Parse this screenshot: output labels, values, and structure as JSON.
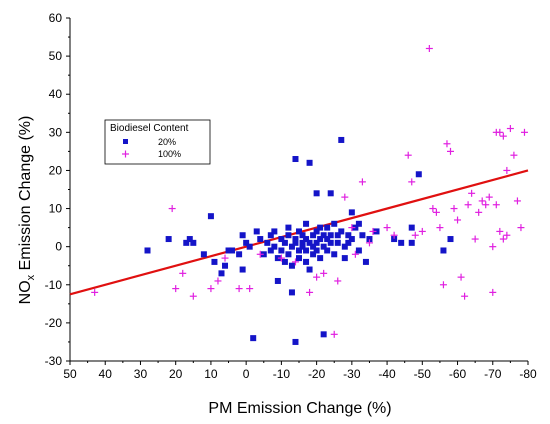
{
  "chart_data": {
    "type": "scatter",
    "xlabel": "PM Emission Change (%)",
    "ylabel_main": "NO",
    "ylabel_sub": "x",
    "ylabel_rest": " Emission Change (%)",
    "xlim": [
      50,
      -80
    ],
    "ylim": [
      -30,
      60
    ],
    "x_ticks": [
      50,
      40,
      30,
      20,
      10,
      0,
      -10,
      -20,
      -30,
      -40,
      -50,
      -60,
      -70,
      -80
    ],
    "y_ticks": [
      -30,
      -20,
      -10,
      0,
      10,
      20,
      30,
      40,
      50,
      60
    ],
    "legend": {
      "title": "Biodiesel Content",
      "placement": "upper-left"
    },
    "series": [
      {
        "name": "20%",
        "marker": "square",
        "color": "#1414c8",
        "points": [
          [
            28,
            -1
          ],
          [
            22,
            2
          ],
          [
            17,
            1
          ],
          [
            16,
            2
          ],
          [
            15,
            1
          ],
          [
            12,
            -2
          ],
          [
            10,
            8
          ],
          [
            9,
            -4
          ],
          [
            7,
            -7
          ],
          [
            6,
            -5
          ],
          [
            5,
            -1
          ],
          [
            4,
            -1
          ],
          [
            2,
            -2
          ],
          [
            1,
            3
          ],
          [
            1,
            -6
          ],
          [
            0,
            1
          ],
          [
            -1,
            0
          ],
          [
            -2,
            -24
          ],
          [
            -3,
            4
          ],
          [
            -4,
            2
          ],
          [
            -5,
            -2
          ],
          [
            -6,
            1
          ],
          [
            -7,
            3
          ],
          [
            -7,
            -1
          ],
          [
            -8,
            4
          ],
          [
            -8,
            0
          ],
          [
            -9,
            -3
          ],
          [
            -9,
            -9
          ],
          [
            -10,
            2
          ],
          [
            -10,
            -1
          ],
          [
            -11,
            1
          ],
          [
            -11,
            -4
          ],
          [
            -12,
            3
          ],
          [
            -12,
            5
          ],
          [
            -12,
            -2
          ],
          [
            -13,
            0
          ],
          [
            -13,
            -5
          ],
          [
            -13,
            -12
          ],
          [
            -14,
            1
          ],
          [
            -14,
            2
          ],
          [
            -14,
            23
          ],
          [
            -14,
            -25
          ],
          [
            -15,
            -1
          ],
          [
            -15,
            4
          ],
          [
            -15,
            -3
          ],
          [
            -16,
            0
          ],
          [
            -16,
            1
          ],
          [
            -16,
            3
          ],
          [
            -17,
            -4
          ],
          [
            -17,
            2
          ],
          [
            -17,
            -1
          ],
          [
            -17,
            6
          ],
          [
            -18,
            22
          ],
          [
            -18,
            -6
          ],
          [
            -18,
            1
          ],
          [
            -19,
            0
          ],
          [
            -19,
            3
          ],
          [
            -19,
            -2
          ],
          [
            -20,
            14
          ],
          [
            -20,
            1
          ],
          [
            -20,
            4
          ],
          [
            -20,
            -1
          ],
          [
            -21,
            2
          ],
          [
            -21,
            -3
          ],
          [
            -21,
            5
          ],
          [
            -22,
            0
          ],
          [
            -22,
            -23
          ],
          [
            -22,
            3
          ],
          [
            -23,
            2
          ],
          [
            -23,
            -1
          ],
          [
            -23,
            5
          ],
          [
            -24,
            14
          ],
          [
            -24,
            3
          ],
          [
            -24,
            1
          ],
          [
            -25,
            6
          ],
          [
            -25,
            -2
          ],
          [
            -26,
            3
          ],
          [
            -26,
            1
          ],
          [
            -27,
            28
          ],
          [
            -27,
            4
          ],
          [
            -28,
            0
          ],
          [
            -28,
            -3
          ],
          [
            -29,
            3
          ],
          [
            -29,
            1
          ],
          [
            -30,
            9
          ],
          [
            -30,
            2
          ],
          [
            -31,
            5
          ],
          [
            -32,
            6
          ],
          [
            -32,
            -1
          ],
          [
            -33,
            3
          ],
          [
            -34,
            -4
          ],
          [
            -35,
            2
          ],
          [
            -37,
            4
          ],
          [
            -42,
            2
          ],
          [
            -44,
            1
          ],
          [
            -47,
            5
          ],
          [
            -47,
            1
          ],
          [
            -49,
            19
          ],
          [
            -56,
            -1
          ],
          [
            -58,
            2
          ]
        ]
      },
      {
        "name": "100%",
        "marker": "cross",
        "color": "#e020e0",
        "points": [
          [
            43,
            -12
          ],
          [
            21,
            10
          ],
          [
            20,
            -11
          ],
          [
            18,
            -7
          ],
          [
            15,
            -13
          ],
          [
            10,
            -11
          ],
          [
            8,
            -9
          ],
          [
            6,
            -3
          ],
          [
            2,
            -11
          ],
          [
            -1,
            -11
          ],
          [
            -4,
            -2
          ],
          [
            -10,
            -3
          ],
          [
            -14,
            -4
          ],
          [
            -18,
            -12
          ],
          [
            -20,
            -8
          ],
          [
            -22,
            -7
          ],
          [
            -25,
            -23
          ],
          [
            -26,
            -9
          ],
          [
            -28,
            13
          ],
          [
            -30,
            5
          ],
          [
            -31,
            -2
          ],
          [
            -33,
            17
          ],
          [
            -35,
            1
          ],
          [
            -36,
            4
          ],
          [
            -40,
            5
          ],
          [
            -42,
            3
          ],
          [
            -46,
            24
          ],
          [
            -47,
            17
          ],
          [
            -48,
            3
          ],
          [
            -50,
            4
          ],
          [
            -52,
            52
          ],
          [
            -53,
            10
          ],
          [
            -54,
            9
          ],
          [
            -55,
            5
          ],
          [
            -56,
            -10
          ],
          [
            -57,
            27
          ],
          [
            -58,
            25
          ],
          [
            -59,
            10
          ],
          [
            -60,
            7
          ],
          [
            -61,
            -8
          ],
          [
            -62,
            -13
          ],
          [
            -63,
            11
          ],
          [
            -64,
            14
          ],
          [
            -65,
            2
          ],
          [
            -66,
            9
          ],
          [
            -67,
            12
          ],
          [
            -68,
            11
          ],
          [
            -69,
            13
          ],
          [
            -70,
            -12
          ],
          [
            -70,
            0
          ],
          [
            -71,
            30
          ],
          [
            -71,
            11
          ],
          [
            -72,
            30
          ],
          [
            -72,
            4
          ],
          [
            -73,
            29
          ],
          [
            -73,
            2
          ],
          [
            -74,
            20
          ],
          [
            -74,
            3
          ],
          [
            -75,
            31
          ],
          [
            -76,
            24
          ],
          [
            -77,
            12
          ],
          [
            -78,
            5
          ],
          [
            -79,
            30
          ]
        ]
      }
    ],
    "trendline": {
      "color": "#e01010",
      "from": [
        50,
        -12.5
      ],
      "to": [
        -80,
        20
      ]
    }
  }
}
